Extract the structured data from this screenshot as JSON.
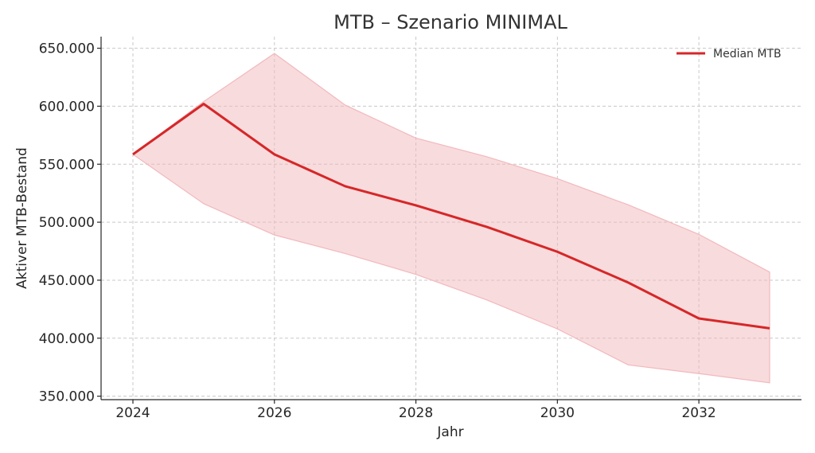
{
  "chart_data": {
    "type": "line",
    "title": "MTB – Szenario MINIMAL",
    "xlabel": "Jahr",
    "ylabel": "Aktiver MTB-Bestand",
    "x": [
      2024,
      2025,
      2026,
      2027,
      2028,
      2029,
      2030,
      2031,
      2032,
      2033
    ],
    "series": [
      {
        "name": "Median MTB",
        "values": [
          558500,
          602000,
          558500,
          531000,
          514500,
          496000,
          474500,
          448000,
          417000,
          408500
        ]
      }
    ],
    "band": {
      "lower": [
        558500,
        516000,
        489000,
        473000,
        455000,
        433000,
        408000,
        377000,
        369500,
        361500
      ],
      "upper": [
        558500,
        604000,
        645500,
        601000,
        572500,
        556500,
        537500,
        515000,
        489500,
        457000
      ]
    },
    "xticks": [
      2024,
      2026,
      2028,
      2030,
      2032
    ],
    "xtick_labels": [
      "2024",
      "2026",
      "2028",
      "2030",
      "2032"
    ],
    "yticks": [
      350000,
      400000,
      450000,
      500000,
      550000,
      600000,
      650000
    ],
    "ytick_labels": [
      "350.000",
      "400.000",
      "450.000",
      "500.000",
      "550.000",
      "600.000",
      "650.000"
    ],
    "xlim": [
      2023.55,
      2033.45
    ],
    "ylim": [
      347000,
      660000
    ],
    "grid": true,
    "legend_position": "top-right",
    "colors": {
      "line": "#d62728",
      "band": "#f2b8bc"
    }
  }
}
